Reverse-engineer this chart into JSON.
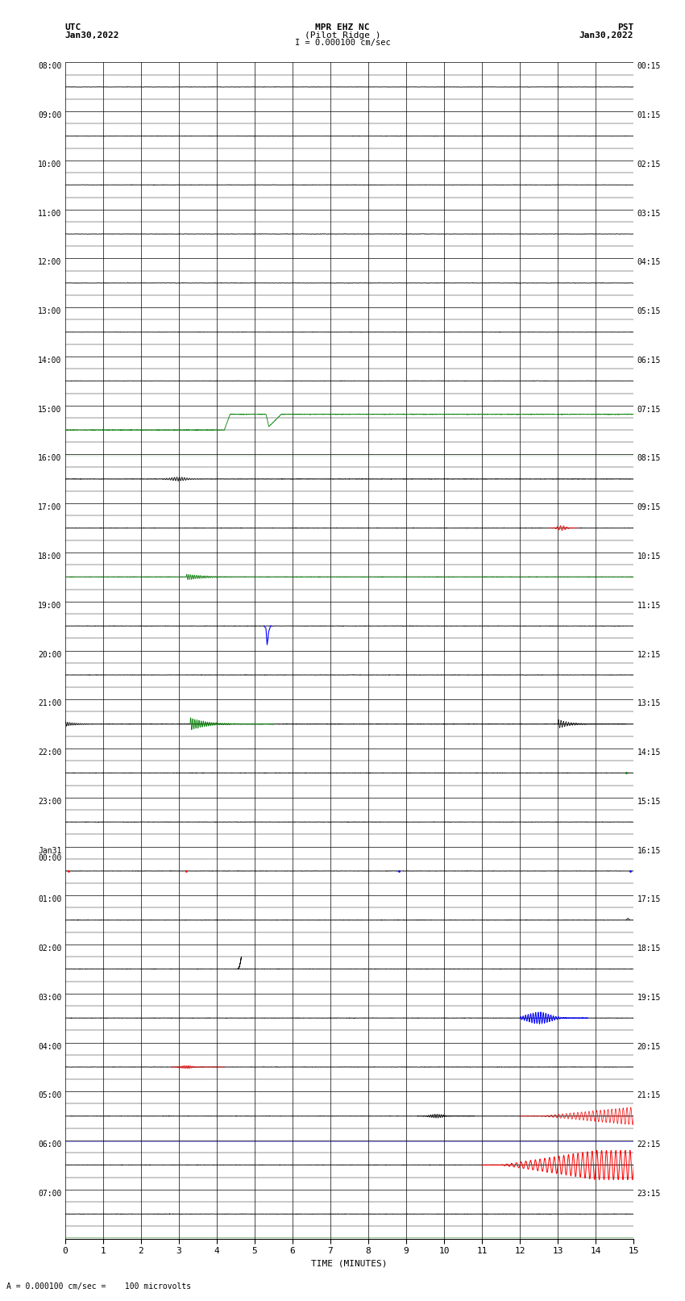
{
  "title_line1": "MPR EHZ NC",
  "title_line2": "(Pilot Ridge )",
  "scale_label": "I = 0.000100 cm/sec",
  "left_label_top": "UTC",
  "left_label_date": "Jan30,2022",
  "right_label_top": "PST",
  "right_label_date": "Jan30,2022",
  "bottom_label": "TIME (MINUTES)",
  "bottom_note": "A = 0.000100 cm/sec =    100 microvolts",
  "utc_labels": [
    "08:00",
    "09:00",
    "10:00",
    "11:00",
    "12:00",
    "13:00",
    "14:00",
    "15:00",
    "16:00",
    "17:00",
    "18:00",
    "19:00",
    "20:00",
    "21:00",
    "22:00",
    "23:00",
    "Jan31\n00:00",
    "01:00",
    "02:00",
    "03:00",
    "04:00",
    "05:00",
    "06:00",
    "07:00"
  ],
  "pst_labels": [
    "00:15",
    "01:15",
    "02:15",
    "03:15",
    "04:15",
    "05:15",
    "06:15",
    "07:15",
    "08:15",
    "09:15",
    "10:15",
    "11:15",
    "12:15",
    "13:15",
    "14:15",
    "15:15",
    "16:15",
    "17:15",
    "18:15",
    "19:15",
    "20:15",
    "21:15",
    "22:15",
    "23:15"
  ],
  "n_rows": 24,
  "x_min": 0,
  "x_max": 15,
  "bg_color": "#ffffff",
  "major_grid_color": "#000000",
  "minor_grid_color": "#000000"
}
